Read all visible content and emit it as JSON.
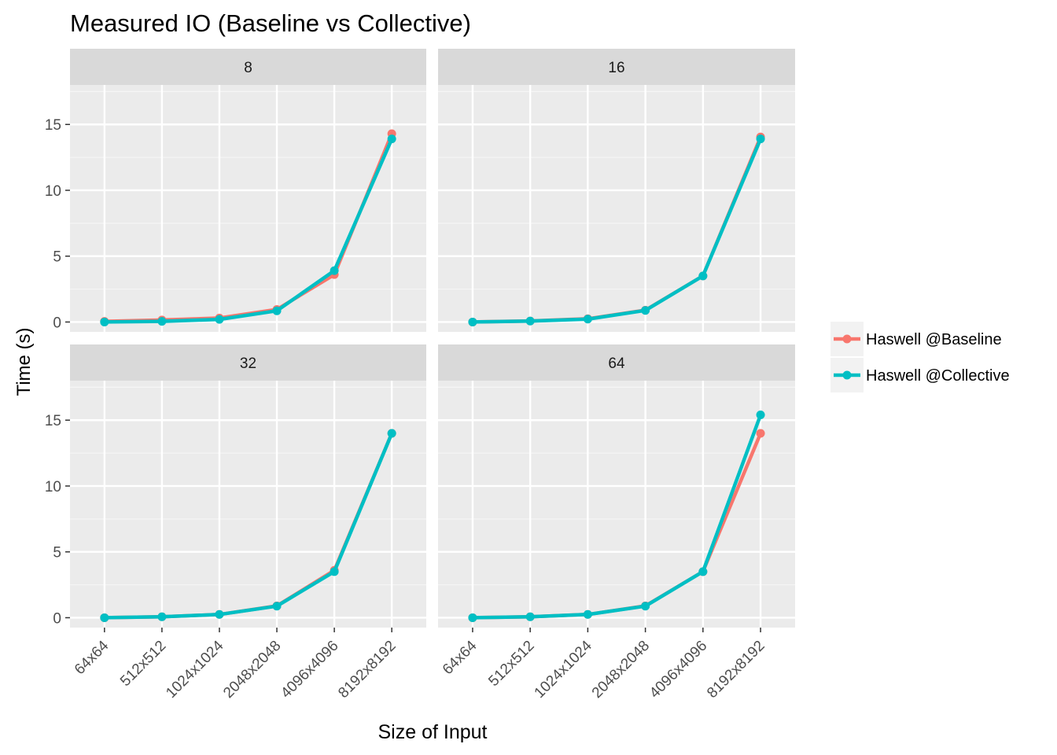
{
  "chart_data": {
    "type": "line",
    "title": "Measured IO (Baseline vs Collective)",
    "xlabel": "Size of Input",
    "ylabel": "Time (s)",
    "categories": [
      "64x64",
      "512x512",
      "1024x1024",
      "2048x2048",
      "4096x4096",
      "8192x8192"
    ],
    "ylim": [
      -0.75,
      18.0
    ],
    "yticks": [
      0,
      5,
      10,
      15
    ],
    "grid": true,
    "legend_position": "right",
    "series_colors": {
      "Haswell @Baseline": "#F8766D",
      "Haswell @Collective": "#00BFC4"
    },
    "facets": [
      {
        "label": "8",
        "series": [
          {
            "name": "Haswell @Baseline",
            "values": [
              0.05,
              0.15,
              0.3,
              0.95,
              3.6,
              14.3
            ]
          },
          {
            "name": "Haswell @Collective",
            "values": [
              0.0,
              0.05,
              0.2,
              0.85,
              3.9,
              13.9
            ]
          }
        ]
      },
      {
        "label": "16",
        "series": [
          {
            "name": "Haswell @Baseline",
            "values": [
              0.0,
              0.08,
              0.25,
              0.9,
              3.5,
              14.05
            ]
          },
          {
            "name": "Haswell @Collective",
            "values": [
              0.0,
              0.07,
              0.22,
              0.88,
              3.5,
              13.9
            ]
          }
        ]
      },
      {
        "label": "32",
        "series": [
          {
            "name": "Haswell @Baseline",
            "values": [
              0.0,
              0.07,
              0.25,
              0.9,
              3.6,
              14.0
            ]
          },
          {
            "name": "Haswell @Collective",
            "values": [
              0.0,
              0.07,
              0.25,
              0.88,
              3.5,
              14.0
            ]
          }
        ]
      },
      {
        "label": "64",
        "series": [
          {
            "name": "Haswell @Baseline",
            "values": [
              0.0,
              0.07,
              0.25,
              0.9,
              3.5,
              14.0
            ]
          },
          {
            "name": "Haswell @Collective",
            "values": [
              0.0,
              0.07,
              0.25,
              0.88,
              3.5,
              15.4
            ]
          }
        ]
      }
    ]
  }
}
